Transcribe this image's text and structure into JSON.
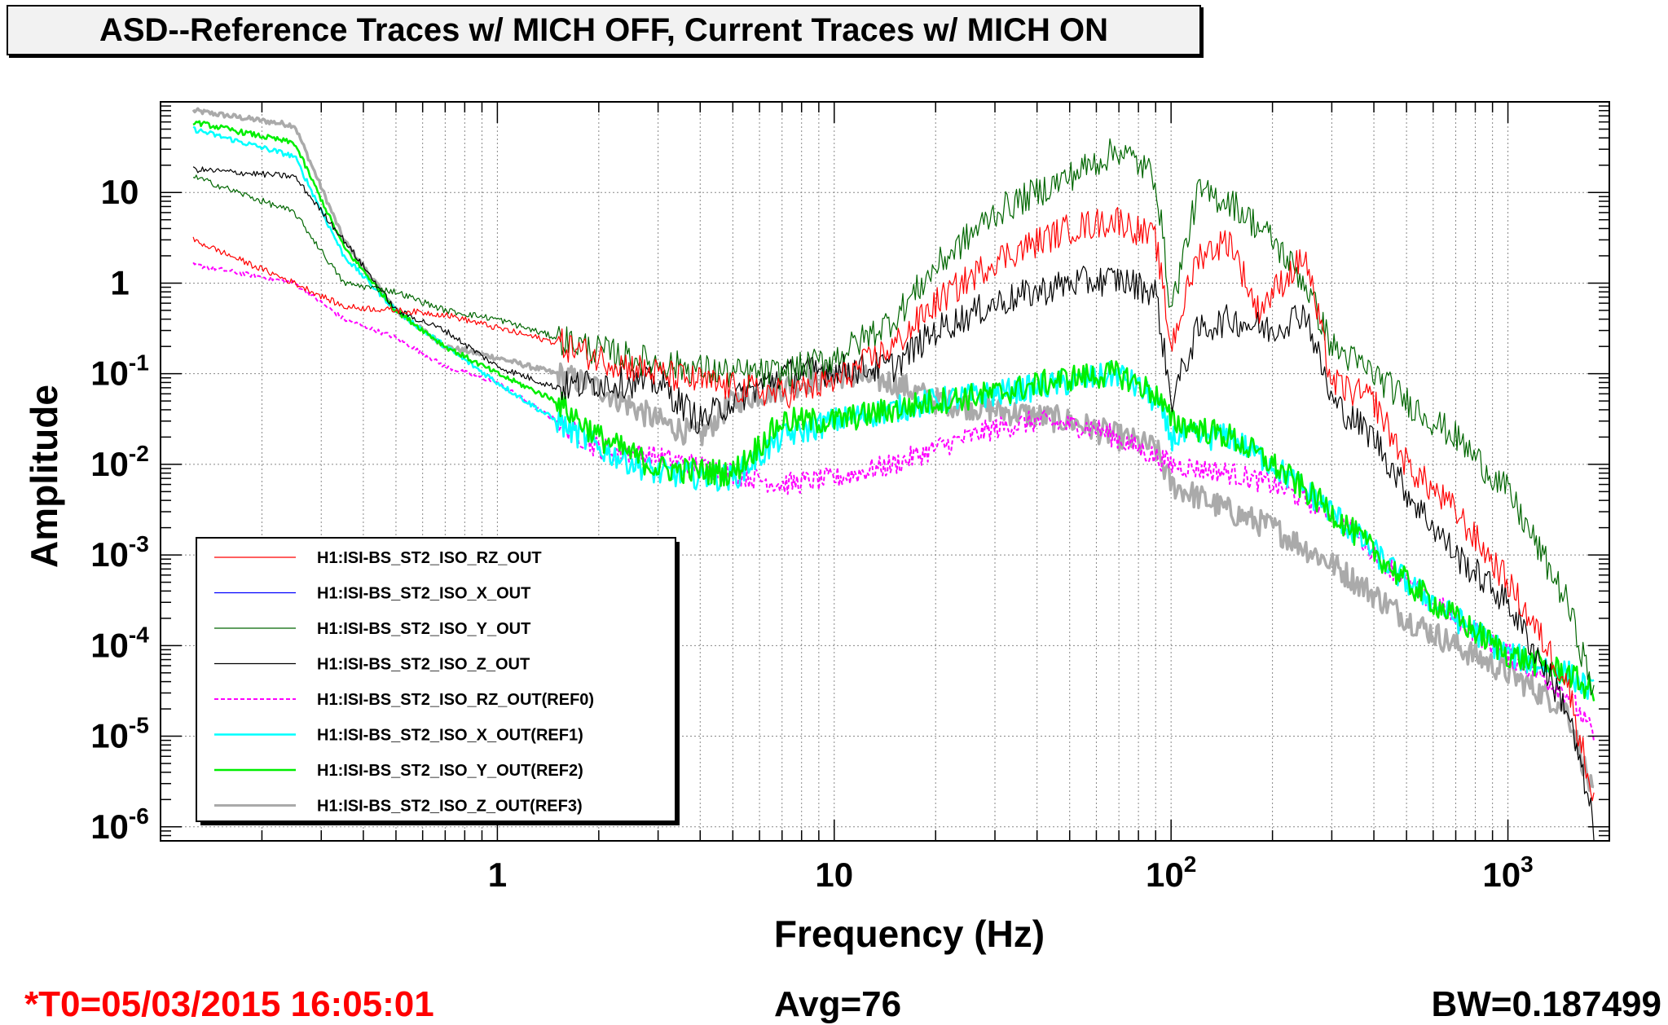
{
  "header": {
    "title": "ASD--Reference Traces w/ MICH OFF, Current Traces w/ MICH ON"
  },
  "footer": {
    "t0": "*T0=05/03/2015 16:05:01",
    "avg": "Avg=76",
    "bw": "BW=0.187499"
  },
  "chart_data": {
    "type": "line",
    "title": "ASD--Reference Traces w/ MICH OFF, Current Traces w/ MICH ON",
    "xlabel": "Frequency (Hz)",
    "ylabel": "Amplitude",
    "xscale": "log",
    "yscale": "log",
    "xlim": [
      0.1,
      2000
    ],
    "ylim": [
      7e-07,
      100
    ],
    "grid": true,
    "legend_position": "lower-left",
    "x_ticks": [
      {
        "value": 1,
        "base": "1",
        "exp": ""
      },
      {
        "value": 10,
        "base": "10",
        "exp": ""
      },
      {
        "value": 100,
        "base": "10",
        "exp": "2"
      },
      {
        "value": 1000,
        "base": "10",
        "exp": "3"
      }
    ],
    "y_ticks": [
      {
        "value": 10,
        "base": "10",
        "exp": ""
      },
      {
        "value": 1,
        "base": "1",
        "exp": ""
      },
      {
        "value": 0.1,
        "base": "10",
        "exp": "-1"
      },
      {
        "value": 0.01,
        "base": "10",
        "exp": "-2"
      },
      {
        "value": 0.001,
        "base": "10",
        "exp": "-3"
      },
      {
        "value": 0.0001,
        "base": "10",
        "exp": "-4"
      },
      {
        "value": 1e-05,
        "base": "10",
        "exp": "-5"
      },
      {
        "value": 1e-06,
        "base": "10",
        "exp": "-6"
      }
    ],
    "series": [
      {
        "name": "H1:ISI-BS_ST2_ISO_RZ_OUT",
        "color": "#ff0000",
        "width": 1.2,
        "dash": "",
        "noise": 0.35,
        "points": [
          [
            0.125,
            3
          ],
          [
            0.25,
            1
          ],
          [
            0.35,
            0.55
          ],
          [
            0.5,
            0.5
          ],
          [
            0.7,
            0.45
          ],
          [
            1,
            0.32
          ],
          [
            1.5,
            0.22
          ],
          [
            2,
            0.15
          ],
          [
            3,
            0.1
          ],
          [
            5,
            0.07
          ],
          [
            7,
            0.06
          ],
          [
            10,
            0.08
          ],
          [
            15,
            0.2
          ],
          [
            20,
            0.6
          ],
          [
            30,
            1.8
          ],
          [
            50,
            4
          ],
          [
            70,
            5
          ],
          [
            90,
            3
          ],
          [
            100,
            0.2
          ],
          [
            120,
            2
          ],
          [
            150,
            3
          ],
          [
            180,
            0.5
          ],
          [
            250,
            2
          ],
          [
            300,
            0.08
          ],
          [
            400,
            0.05
          ],
          [
            500,
            0.01
          ],
          [
            700,
            0.003
          ],
          [
            1000,
            0.0005
          ],
          [
            1500,
            4e-05
          ],
          [
            1800,
            2e-06
          ]
        ]
      },
      {
        "name": "H1:ISI-BS_ST2_ISO_X_OUT",
        "color": "#0000ff",
        "width": 1.2,
        "dash": "",
        "noise": 0.0,
        "points": []
      },
      {
        "name": "H1:ISI-BS_ST2_ISO_Y_OUT",
        "color": "#006600",
        "width": 1.2,
        "dash": "",
        "noise": 0.35,
        "points": [
          [
            0.125,
            15
          ],
          [
            0.25,
            6
          ],
          [
            0.35,
            1
          ],
          [
            0.5,
            0.8
          ],
          [
            0.7,
            0.5
          ],
          [
            1,
            0.4
          ],
          [
            1.5,
            0.25
          ],
          [
            2,
            0.18
          ],
          [
            3,
            0.13
          ],
          [
            5,
            0.1
          ],
          [
            7,
            0.1
          ],
          [
            10,
            0.15
          ],
          [
            15,
            0.4
          ],
          [
            20,
            1.5
          ],
          [
            30,
            6
          ],
          [
            50,
            15
          ],
          [
            70,
            30
          ],
          [
            90,
            15
          ],
          [
            100,
            0.5
          ],
          [
            120,
            10
          ],
          [
            150,
            8
          ],
          [
            200,
            3
          ],
          [
            250,
            1
          ],
          [
            300,
            0.2
          ],
          [
            400,
            0.1
          ],
          [
            500,
            0.05
          ],
          [
            700,
            0.02
          ],
          [
            1000,
            0.005
          ],
          [
            1500,
            0.0003
          ],
          [
            1800,
            3e-05
          ]
        ]
      },
      {
        "name": "H1:ISI-BS_ST2_ISO_Z_OUT",
        "color": "#000000",
        "width": 1.2,
        "dash": "",
        "noise": 0.35,
        "points": [
          [
            0.125,
            18
          ],
          [
            0.25,
            15
          ],
          [
            0.35,
            3
          ],
          [
            0.5,
            0.5
          ],
          [
            0.7,
            0.3
          ],
          [
            1,
            0.12
          ],
          [
            1.5,
            0.07
          ],
          [
            2,
            0.08
          ],
          [
            3,
            0.08
          ],
          [
            4,
            0.03
          ],
          [
            5,
            0.05
          ],
          [
            7,
            0.1
          ],
          [
            10,
            0.11
          ],
          [
            15,
            0.12
          ],
          [
            20,
            0.3
          ],
          [
            30,
            0.6
          ],
          [
            50,
            1
          ],
          [
            70,
            1.1
          ],
          [
            90,
            0.8
          ],
          [
            100,
            0.05
          ],
          [
            120,
            0.3
          ],
          [
            150,
            0.4
          ],
          [
            200,
            0.3
          ],
          [
            250,
            0.5
          ],
          [
            300,
            0.05
          ],
          [
            400,
            0.02
          ],
          [
            500,
            0.005
          ],
          [
            700,
            0.001
          ],
          [
            1000,
            0.0003
          ],
          [
            1500,
            2e-05
          ],
          [
            1800,
            1e-06
          ]
        ]
      },
      {
        "name": "H1:ISI-BS_ST2_ISO_RZ_OUT(REF0)",
        "color": "#ff00ff",
        "width": 2,
        "dash": "5,3",
        "noise": 0.25,
        "points": [
          [
            0.125,
            1.6
          ],
          [
            0.25,
            1
          ],
          [
            0.35,
            0.4
          ],
          [
            0.5,
            0.25
          ],
          [
            0.7,
            0.12
          ],
          [
            1,
            0.08
          ],
          [
            1.5,
            0.03
          ],
          [
            2,
            0.015
          ],
          [
            3,
            0.012
          ],
          [
            5,
            0.008
          ],
          [
            7,
            0.006
          ],
          [
            10,
            0.007
          ],
          [
            15,
            0.01
          ],
          [
            20,
            0.015
          ],
          [
            30,
            0.025
          ],
          [
            40,
            0.03
          ],
          [
            60,
            0.025
          ],
          [
            80,
            0.015
          ],
          [
            100,
            0.01
          ],
          [
            150,
            0.008
          ],
          [
            200,
            0.006
          ],
          [
            300,
            0.003
          ],
          [
            500,
            0.0005
          ],
          [
            700,
            0.0002
          ],
          [
            1000,
            8e-05
          ],
          [
            1500,
            3e-05
          ],
          [
            1800,
            1e-05
          ]
        ]
      },
      {
        "name": "H1:ISI-BS_ST2_ISO_X_OUT(REF1)",
        "color": "#00ffff",
        "width": 2.5,
        "dash": "",
        "noise": 0.3,
        "points": [
          [
            0.125,
            50
          ],
          [
            0.25,
            25
          ],
          [
            0.35,
            2
          ],
          [
            0.5,
            0.5
          ],
          [
            0.7,
            0.2
          ],
          [
            1,
            0.08
          ],
          [
            1.5,
            0.03
          ],
          [
            2,
            0.015
          ],
          [
            3,
            0.008
          ],
          [
            5,
            0.007
          ],
          [
            7,
            0.02
          ],
          [
            10,
            0.03
          ],
          [
            15,
            0.04
          ],
          [
            20,
            0.05
          ],
          [
            30,
            0.06
          ],
          [
            50,
            0.08
          ],
          [
            70,
            0.1
          ],
          [
            90,
            0.05
          ],
          [
            100,
            0.02
          ],
          [
            150,
            0.02
          ],
          [
            200,
            0.01
          ],
          [
            300,
            0.003
          ],
          [
            500,
            0.0005
          ],
          [
            700,
            0.0002
          ],
          [
            1000,
            8e-05
          ],
          [
            1500,
            5e-05
          ],
          [
            1800,
            3e-05
          ]
        ]
      },
      {
        "name": "H1:ISI-BS_ST2_ISO_Y_OUT(REF2)",
        "color": "#00ee00",
        "width": 2.5,
        "dash": "",
        "noise": 0.3,
        "points": [
          [
            0.125,
            60
          ],
          [
            0.25,
            35
          ],
          [
            0.35,
            2.5
          ],
          [
            0.5,
            0.5
          ],
          [
            0.7,
            0.2
          ],
          [
            1,
            0.1
          ],
          [
            1.5,
            0.05
          ],
          [
            2,
            0.02
          ],
          [
            3,
            0.009
          ],
          [
            5,
            0.008
          ],
          [
            7,
            0.03
          ],
          [
            10,
            0.03
          ],
          [
            15,
            0.04
          ],
          [
            20,
            0.05
          ],
          [
            30,
            0.06
          ],
          [
            50,
            0.09
          ],
          [
            70,
            0.1
          ],
          [
            90,
            0.06
          ],
          [
            100,
            0.03
          ],
          [
            150,
            0.02
          ],
          [
            200,
            0.01
          ],
          [
            300,
            0.003
          ],
          [
            500,
            0.0005
          ],
          [
            700,
            0.0002
          ],
          [
            1000,
            8e-05
          ],
          [
            1500,
            5e-05
          ],
          [
            1800,
            3e-05
          ]
        ]
      },
      {
        "name": "H1:ISI-BS_ST2_ISO_Z_OUT(REF3)",
        "color": "#aaaaaa",
        "width": 3.5,
        "dash": "",
        "noise": 0.3,
        "points": [
          [
            0.125,
            80
          ],
          [
            0.25,
            55
          ],
          [
            0.35,
            3
          ],
          [
            0.5,
            0.5
          ],
          [
            0.7,
            0.2
          ],
          [
            1,
            0.15
          ],
          [
            1.5,
            0.1
          ],
          [
            2,
            0.07
          ],
          [
            3,
            0.03
          ],
          [
            4,
            0.02
          ],
          [
            5,
            0.05
          ],
          [
            7,
            0.07
          ],
          [
            10,
            0.1
          ],
          [
            15,
            0.08
          ],
          [
            20,
            0.05
          ],
          [
            30,
            0.04
          ],
          [
            50,
            0.03
          ],
          [
            70,
            0.02
          ],
          [
            90,
            0.015
          ],
          [
            100,
            0.006
          ],
          [
            150,
            0.003
          ],
          [
            200,
            0.002
          ],
          [
            300,
            0.0008
          ],
          [
            500,
            0.0002
          ],
          [
            700,
            0.0001
          ],
          [
            1000,
            5e-05
          ],
          [
            1500,
            2e-05
          ],
          [
            1800,
            2e-06
          ]
        ]
      }
    ]
  }
}
